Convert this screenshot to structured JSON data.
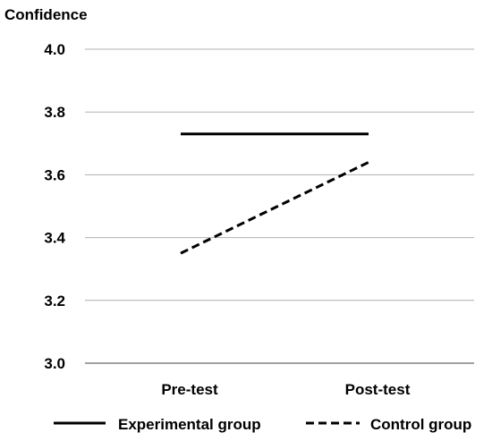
{
  "chart_data": {
    "type": "line",
    "ylabel": "Confidence",
    "xlabel": "",
    "title": "",
    "categories": [
      "Pre-test",
      "Post-test"
    ],
    "ylim": [
      3.0,
      4.0
    ],
    "yticks": [
      "3.0",
      "3.2",
      "3.4",
      "3.6",
      "3.8",
      "4.0"
    ],
    "grid": true,
    "legend_position": "bottom",
    "series": [
      {
        "name": "Experimental group",
        "values": [
          3.73,
          3.73
        ],
        "style": "solid",
        "color": "#000000"
      },
      {
        "name": "Control group",
        "values": [
          3.35,
          3.64
        ],
        "style": "dashed",
        "color": "#000000"
      }
    ]
  },
  "colors": {
    "grid": "#b0b0b0",
    "axis": "#808080",
    "line": "#000000"
  }
}
